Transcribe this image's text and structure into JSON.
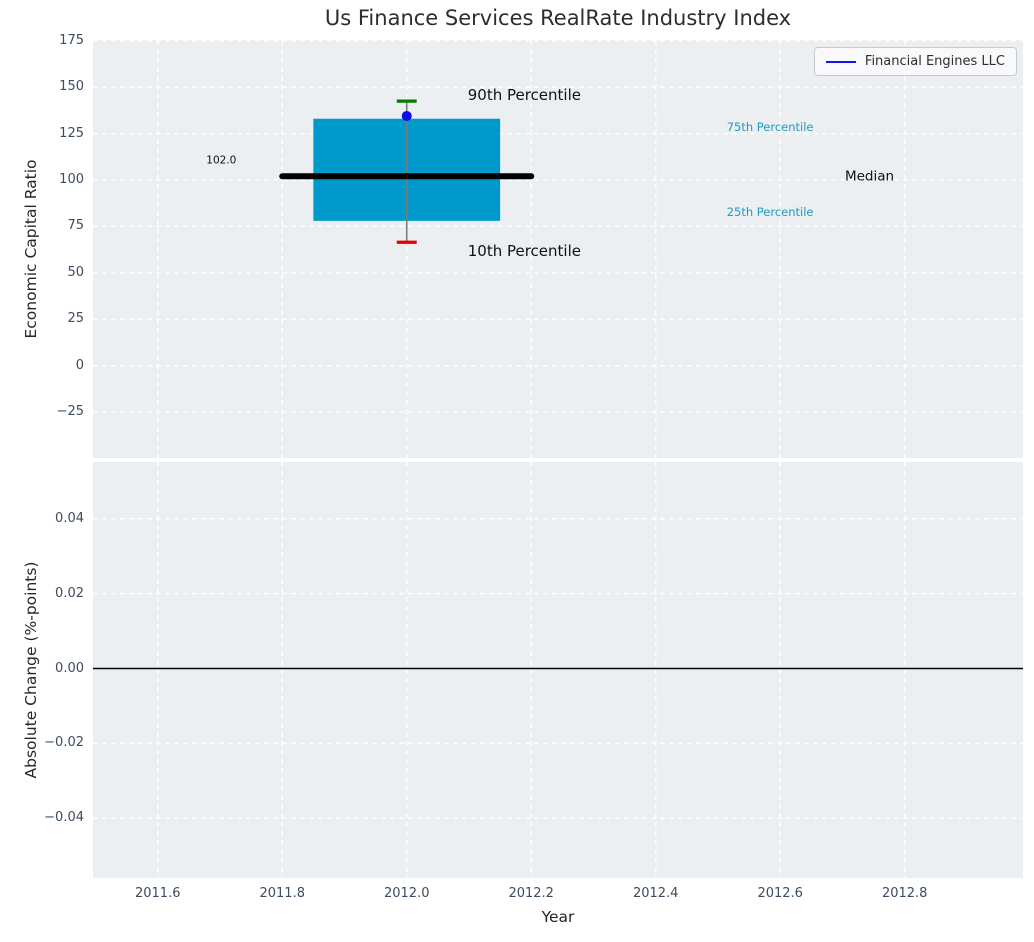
{
  "title": "Us Finance Services RealRate Industry Index",
  "legend": {
    "label": "Financial Engines LLC",
    "line_color": "#1414e6"
  },
  "colors": {
    "figure_bg": "#ffffff",
    "plot_bg": "#eceff1",
    "grid": "#ffffff",
    "box": "#0099cc",
    "median": "#000000",
    "cap_top": "#007d00",
    "cap_bottom": "#e60000",
    "whisker": "#7a7a7a",
    "point": "#0d0de6",
    "tick_label": "#3c4c61",
    "percentile_label": "#1e9ac4",
    "annotation_text": "#111111"
  },
  "chart_data": [
    {
      "type": "box",
      "title": "Us Finance Services RealRate Industry Index",
      "ylabel": "Economic Capital Ratio",
      "xlim": [
        2011.496,
        2012.99
      ],
      "ylim": [
        -49.7,
        175.4
      ],
      "grid": true,
      "legend_position": "upper right",
      "ytick_values": [
        175,
        150,
        125,
        100,
        75,
        50,
        25,
        0,
        -25
      ],
      "ytick_labels": [
        "175",
        "150",
        "125",
        "100",
        "75",
        "50",
        "25",
        "0",
        "−25"
      ],
      "xtick_values": [
        2011.6,
        2011.8,
        2012.0,
        2012.2,
        2012.4,
        2012.6,
        2012.8
      ],
      "box": {
        "x_center": 2012.0,
        "box_left": 2011.85,
        "box_right": 2012.15,
        "median_left": 2011.8,
        "median_right": 2012.2,
        "cap_halfwidth": 0.016,
        "p10": 66.5,
        "p25": 78,
        "median": 102,
        "p75": 133,
        "p90": 142.5
      },
      "median_value_label": "102.0",
      "company_point": {
        "name": "Financial Engines LLC",
        "x": 2012.0,
        "y": 134.5
      },
      "annotations": [
        {
          "text": "102.0",
          "x": 2011.678,
          "y": 110.8,
          "color": "#111111",
          "size": 10.5
        },
        {
          "text": "90th Percentile",
          "x": 2012.098,
          "y": 145.8,
          "color": "#111111",
          "size": 15
        },
        {
          "text": "10th Percentile",
          "x": 2012.098,
          "y": 61.8,
          "color": "#111111",
          "size": 15
        },
        {
          "text": "75th Percentile",
          "x": 2012.514,
          "y": 128.5,
          "color": "#1e9ac4",
          "size": 11.5
        },
        {
          "text": "Median",
          "x": 2012.704,
          "y": 102.4,
          "color": "#111111",
          "size": 13.5
        },
        {
          "text": "25th Percentile",
          "x": 2012.514,
          "y": 82.8,
          "color": "#1e9ac4",
          "size": 11.5
        }
      ]
    },
    {
      "type": "line",
      "ylabel": "Absolute Change (%-points)",
      "xlabel": "Year",
      "xlim": [
        2011.496,
        2012.99
      ],
      "ylim": [
        -0.0559,
        0.0551
      ],
      "grid": true,
      "ytick_values": [
        0.04,
        0.02,
        0,
        -0.02,
        -0.04
      ],
      "ytick_labels": [
        "0.04",
        "0.02",
        "0.00",
        "−0.02",
        "−0.04"
      ],
      "xtick_values": [
        2011.6,
        2011.8,
        2012.0,
        2012.2,
        2012.4,
        2012.6,
        2012.8
      ],
      "xtick_labels": [
        "2011.6",
        "2011.8",
        "2012.0",
        "2012.2",
        "2012.4",
        "2012.6",
        "2012.8"
      ],
      "hline": {
        "y": 0,
        "color": "#000000",
        "width": 1.6
      },
      "series": []
    }
  ]
}
